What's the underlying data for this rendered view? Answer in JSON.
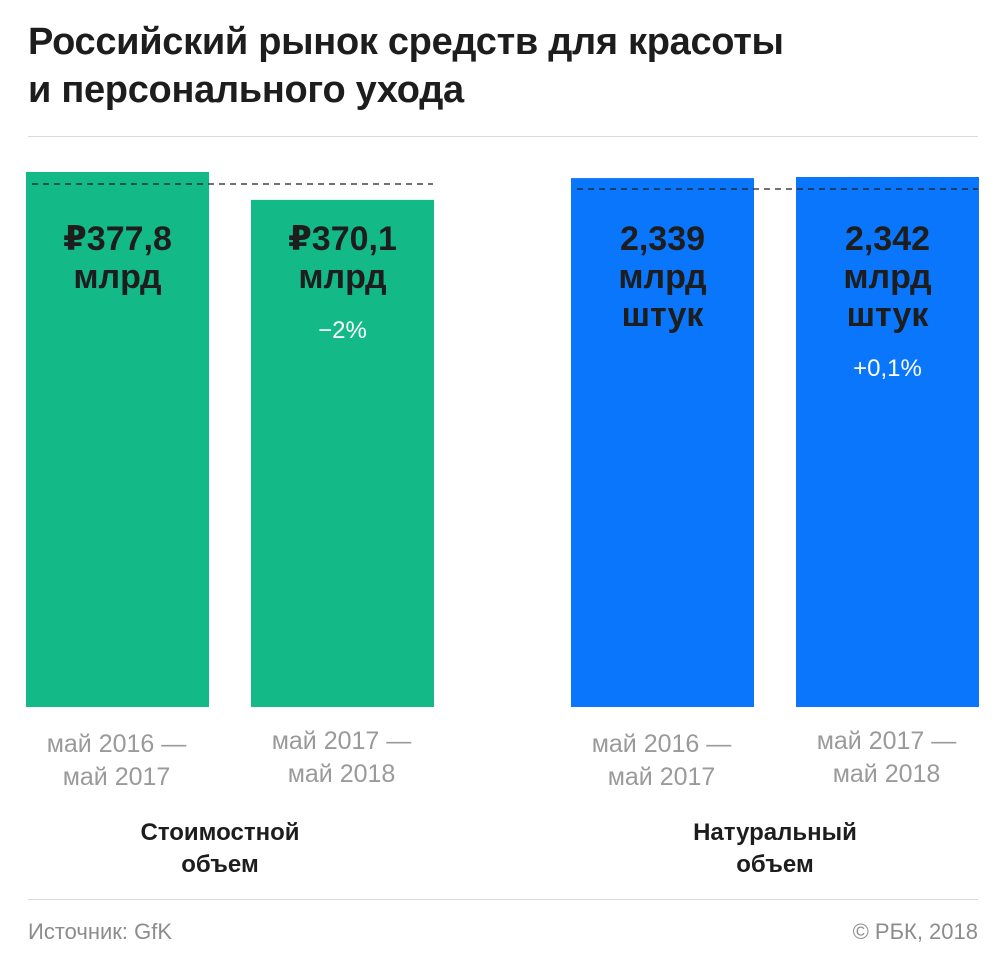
{
  "title_line1": "Российский рынок средств для красоты",
  "title_line2": "и персонального ухода",
  "source": "Источник: GfK",
  "copyright": "© РБК, 2018",
  "chart_data": {
    "type": "bar",
    "groups": [
      {
        "label_lines": [
          "Стоимостной",
          "объем"
        ],
        "color": "#13b987",
        "unit": "млрд руб.",
        "bars": [
          {
            "period_lines": [
              "май 2016 —",
              "май 2017"
            ],
            "value": 377.8,
            "label_lines": [
              "₽377,8",
              "млрд"
            ],
            "change": ""
          },
          {
            "period_lines": [
              "май 2017 —",
              "май 2018"
            ],
            "value": 370.1,
            "label_lines": [
              "₽370,1",
              "млрд"
            ],
            "change": "−2%"
          }
        ]
      },
      {
        "label_lines": [
          "Натуральный",
          "объем"
        ],
        "color": "#0a76fb",
        "unit": "млрд штук",
        "bars": [
          {
            "period_lines": [
              "май 2016 —",
              "май 2017"
            ],
            "value": 2.339,
            "label_lines": [
              "2,339",
              "млрд",
              "штук"
            ],
            "change": ""
          },
          {
            "period_lines": [
              "май 2017 —",
              "май 2018"
            ],
            "value": 2.342,
            "label_lines": [
              "2,342",
              "млрд",
              "штук"
            ],
            "change": "+0,1%"
          }
        ]
      }
    ]
  }
}
